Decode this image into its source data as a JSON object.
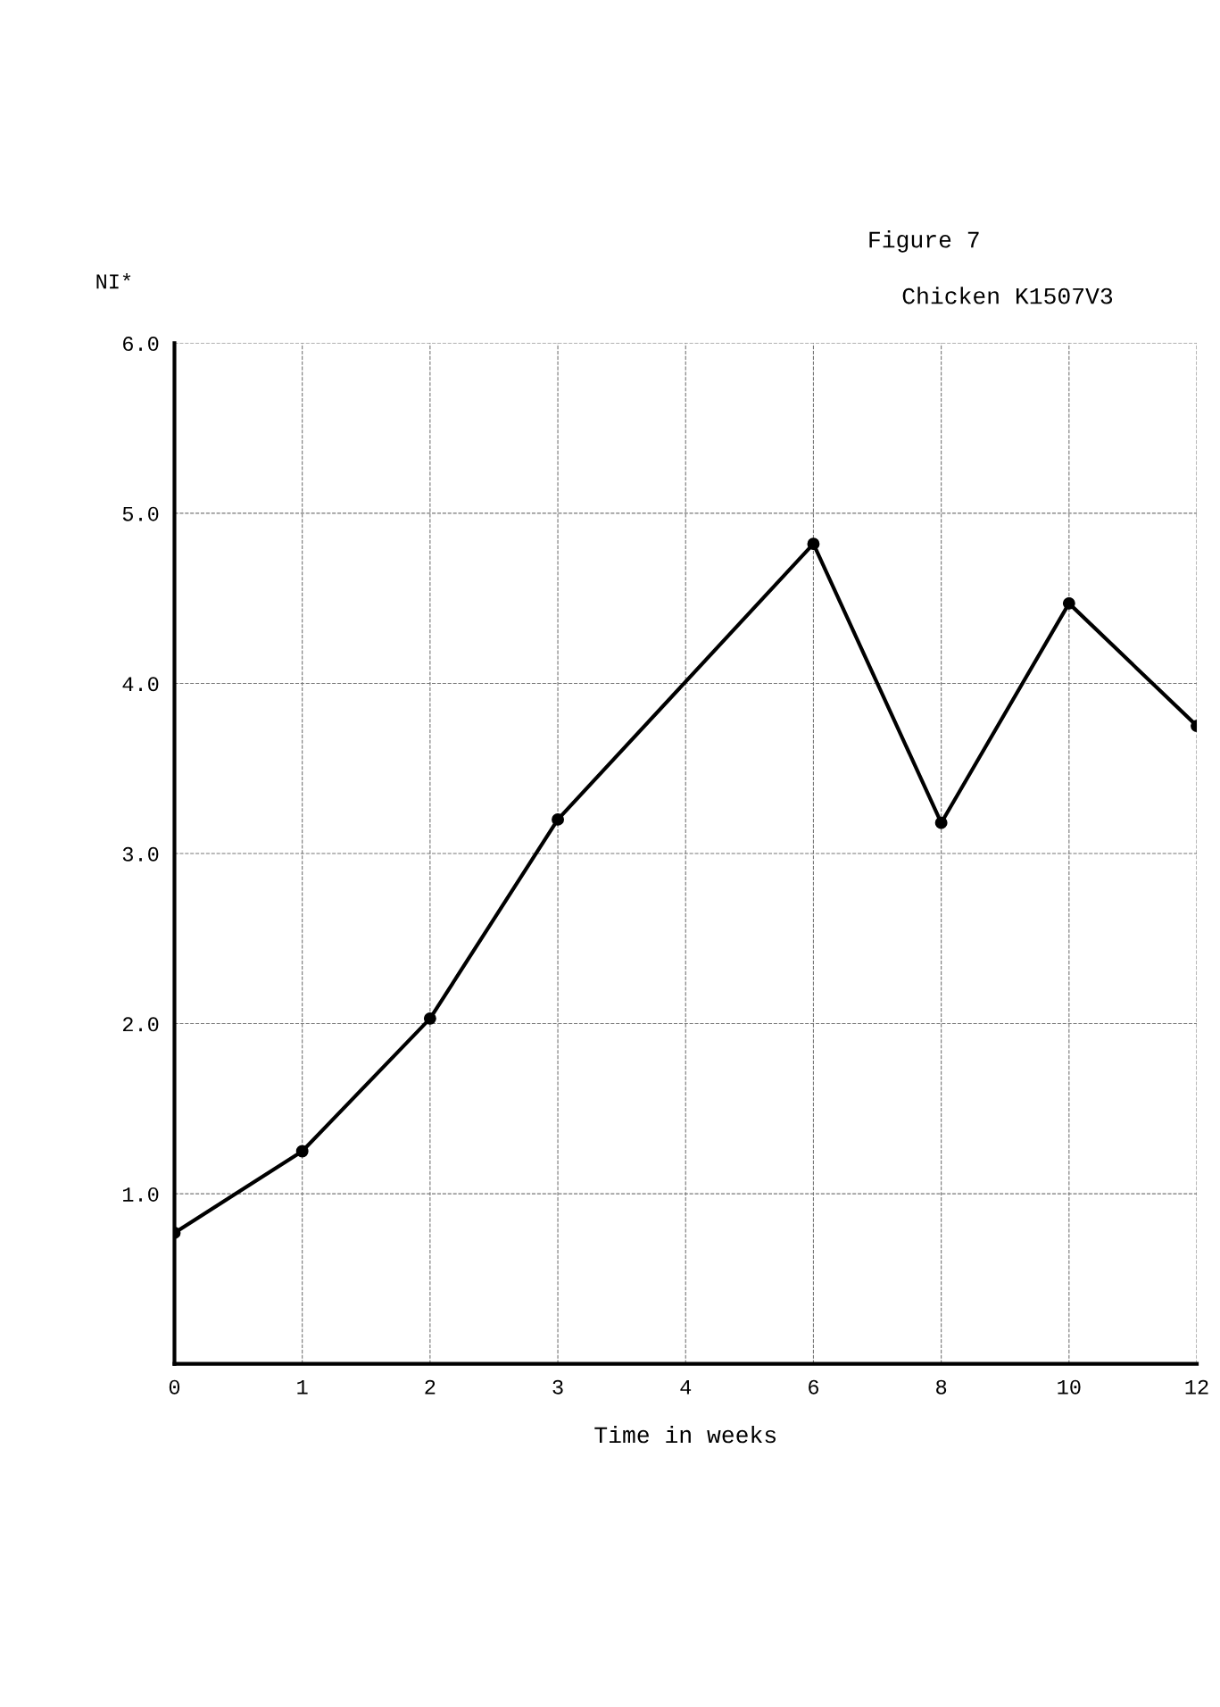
{
  "chart_data": {
    "type": "line",
    "title": "Figure 7",
    "subtitle": "Chicken K1507V3",
    "xlabel": "Time in weeks",
    "ylabel": "NI*",
    "categories": [
      "0",
      "1",
      "2",
      "3",
      "4",
      "6",
      "8",
      "10",
      "12"
    ],
    "series": [
      {
        "x": [
          "0",
          "1",
          "2",
          "3",
          "6",
          "8",
          "10",
          "12"
        ],
        "values": [
          0.77,
          1.25,
          2.03,
          3.2,
          4.82,
          3.18,
          4.47,
          3.75
        ],
        "color": "#000000"
      }
    ],
    "ylim": [
      0,
      6
    ],
    "yticks": [
      {
        "value": 1,
        "label": "1.0"
      },
      {
        "value": 2,
        "label": "2.0"
      },
      {
        "value": 3,
        "label": "3.0"
      },
      {
        "value": 4,
        "label": "4.0"
      },
      {
        "value": 5,
        "label": "5.0"
      },
      {
        "value": 6,
        "label": "6.0"
      }
    ],
    "grid": true,
    "marker": "circle",
    "line_style": "solid"
  }
}
